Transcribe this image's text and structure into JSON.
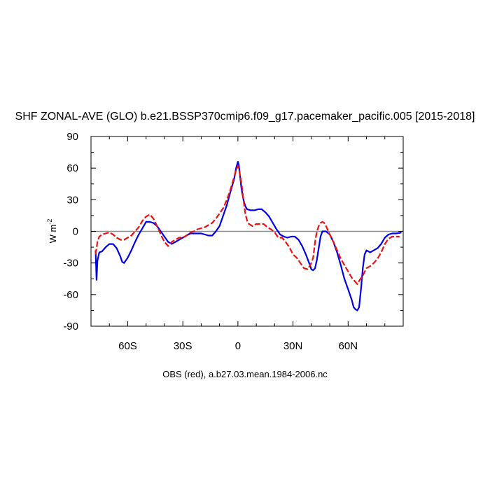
{
  "chart_data": {
    "type": "line",
    "title": "SHF ZONAL-AVE (GLO) b.e21.BSSP370cmip6.f09_g17.pacemaker_pacific.005 [2015-2018]",
    "xlabel": "",
    "ylabel": "W m",
    "ylabel_sup": "-2",
    "caption": "OBS (red), a.b27.03.mean.1984-2006.nc",
    "xlim": [
      -80,
      90
    ],
    "ylim": [
      -90,
      90
    ],
    "x_ticks": [
      {
        "value": -60,
        "label": "60S"
      },
      {
        "value": -30,
        "label": "30S"
      },
      {
        "value": 0,
        "label": "0"
      },
      {
        "value": 30,
        "label": "30N"
      },
      {
        "value": 60,
        "label": "60N"
      }
    ],
    "y_ticks": [
      {
        "value": -90,
        "label": "-90"
      },
      {
        "value": -60,
        "label": "-60"
      },
      {
        "value": -30,
        "label": "-30"
      },
      {
        "value": 0,
        "label": "0"
      },
      {
        "value": 30,
        "label": "30"
      },
      {
        "value": 60,
        "label": "60"
      },
      {
        "value": 90,
        "label": "90"
      }
    ],
    "zero_line": true,
    "series": [
      {
        "color": "#0000ee",
        "dash": "solid",
        "points": [
          [
            -77.5,
            -18
          ],
          [
            -77,
            -46
          ],
          [
            -76.5,
            -28
          ],
          [
            -75.5,
            -20
          ],
          [
            -74,
            -19
          ],
          [
            -72,
            -15
          ],
          [
            -70,
            -12
          ],
          [
            -68,
            -12
          ],
          [
            -66,
            -16
          ],
          [
            -64,
            -24
          ],
          [
            -63,
            -29
          ],
          [
            -62,
            -30
          ],
          [
            -60,
            -25
          ],
          [
            -58,
            -18
          ],
          [
            -56,
            -10
          ],
          [
            -54,
            -3
          ],
          [
            -52,
            3
          ],
          [
            -50,
            9
          ],
          [
            -48,
            9
          ],
          [
            -46,
            8
          ],
          [
            -44,
            5
          ],
          [
            -42,
            0
          ],
          [
            -40,
            -5
          ],
          [
            -38,
            -10
          ],
          [
            -36,
            -12
          ],
          [
            -34,
            -10
          ],
          [
            -32,
            -8
          ],
          [
            -30,
            -6
          ],
          [
            -28,
            -4
          ],
          [
            -26,
            -2
          ],
          [
            -24,
            -2
          ],
          [
            -22,
            -2
          ],
          [
            -20,
            -2
          ],
          [
            -18,
            -3
          ],
          [
            -16,
            -4
          ],
          [
            -14,
            -4
          ],
          [
            -12,
            0
          ],
          [
            -10,
            5
          ],
          [
            -8,
            15
          ],
          [
            -6,
            25
          ],
          [
            -4,
            38
          ],
          [
            -2,
            50
          ],
          [
            -1,
            60
          ],
          [
            0,
            66
          ],
          [
            0.5,
            63
          ],
          [
            1,
            55
          ],
          [
            2,
            40
          ],
          [
            3,
            30
          ],
          [
            4,
            24
          ],
          [
            5,
            21
          ],
          [
            7,
            20
          ],
          [
            9,
            20
          ],
          [
            11,
            21
          ],
          [
            13,
            21
          ],
          [
            15,
            18
          ],
          [
            17,
            14
          ],
          [
            19,
            8
          ],
          [
            21,
            2
          ],
          [
            23,
            -3
          ],
          [
            25,
            -5
          ],
          [
            27,
            -6
          ],
          [
            29,
            -5
          ],
          [
            31,
            -5
          ],
          [
            33,
            -8
          ],
          [
            35,
            -14
          ],
          [
            37,
            -22
          ],
          [
            39,
            -31
          ],
          [
            40,
            -36
          ],
          [
            41,
            -37
          ],
          [
            42,
            -35
          ],
          [
            43,
            -27
          ],
          [
            44,
            -16
          ],
          [
            45,
            -5
          ],
          [
            46,
            0
          ],
          [
            48,
            0
          ],
          [
            50,
            -3
          ],
          [
            52,
            -10
          ],
          [
            54,
            -20
          ],
          [
            56,
            -32
          ],
          [
            58,
            -45
          ],
          [
            60,
            -55
          ],
          [
            62,
            -65
          ],
          [
            63,
            -72
          ],
          [
            64,
            -74
          ],
          [
            65,
            -75
          ],
          [
            66,
            -72
          ],
          [
            67,
            -55
          ],
          [
            68,
            -35
          ],
          [
            69,
            -22
          ],
          [
            70,
            -18
          ],
          [
            72,
            -20
          ],
          [
            74,
            -18
          ],
          [
            76,
            -16
          ],
          [
            78,
            -12
          ],
          [
            80,
            -6
          ],
          [
            82,
            -3
          ],
          [
            84,
            -2
          ],
          [
            86,
            -2
          ],
          [
            88,
            -1.5
          ],
          [
            89,
            -1
          ]
        ]
      },
      {
        "color": "#ee1111",
        "dash": "dashed",
        "points": [
          [
            -77.5,
            -22
          ],
          [
            -77,
            -16
          ],
          [
            -76.5,
            -10
          ],
          [
            -75.5,
            -5
          ],
          [
            -74,
            -3
          ],
          [
            -72,
            -2
          ],
          [
            -70,
            -1
          ],
          [
            -68,
            -3
          ],
          [
            -66,
            -6
          ],
          [
            -64,
            -8
          ],
          [
            -62,
            -8
          ],
          [
            -60,
            -6
          ],
          [
            -58,
            -4
          ],
          [
            -56,
            0
          ],
          [
            -54,
            4
          ],
          [
            -52,
            10
          ],
          [
            -50,
            14
          ],
          [
            -48,
            16
          ],
          [
            -46,
            12
          ],
          [
            -44,
            5
          ],
          [
            -42,
            -3
          ],
          [
            -40,
            -10
          ],
          [
            -38,
            -14
          ],
          [
            -36,
            -10
          ],
          [
            -34,
            -8
          ],
          [
            -32,
            -6
          ],
          [
            -30,
            -6
          ],
          [
            -28,
            -4
          ],
          [
            -26,
            -1
          ],
          [
            -24,
            0
          ],
          [
            -22,
            2
          ],
          [
            -20,
            3
          ],
          [
            -18,
            4
          ],
          [
            -16,
            6
          ],
          [
            -14,
            8
          ],
          [
            -12,
            12
          ],
          [
            -10,
            17
          ],
          [
            -8,
            22
          ],
          [
            -6,
            30
          ],
          [
            -4,
            40
          ],
          [
            -2,
            52
          ],
          [
            -1,
            58
          ],
          [
            0,
            62
          ],
          [
            0.5,
            60
          ],
          [
            1,
            55
          ],
          [
            2,
            45
          ],
          [
            3,
            30
          ],
          [
            4,
            17
          ],
          [
            5,
            10
          ],
          [
            6,
            7
          ],
          [
            8,
            5
          ],
          [
            10,
            7
          ],
          [
            12,
            7
          ],
          [
            14,
            7
          ],
          [
            16,
            4
          ],
          [
            18,
            2
          ],
          [
            20,
            -1
          ],
          [
            22,
            -6
          ],
          [
            24,
            -6
          ],
          [
            26,
            -10
          ],
          [
            28,
            -15
          ],
          [
            30,
            -22
          ],
          [
            32,
            -25
          ],
          [
            34,
            -30
          ],
          [
            36,
            -35
          ],
          [
            38,
            -36
          ],
          [
            40,
            -30
          ],
          [
            41,
            -25
          ],
          [
            42,
            -10
          ],
          [
            43,
            0
          ],
          [
            44,
            5
          ],
          [
            45,
            8
          ],
          [
            46,
            9
          ],
          [
            47,
            8
          ],
          [
            48,
            5
          ],
          [
            50,
            -3
          ],
          [
            52,
            -10
          ],
          [
            54,
            -18
          ],
          [
            56,
            -26
          ],
          [
            58,
            -32
          ],
          [
            60,
            -38
          ],
          [
            62,
            -44
          ],
          [
            64,
            -48
          ],
          [
            65,
            -50
          ],
          [
            66,
            -47
          ],
          [
            68,
            -42
          ],
          [
            70,
            -35
          ],
          [
            72,
            -33
          ],
          [
            74,
            -30
          ],
          [
            76,
            -26
          ],
          [
            78,
            -20
          ],
          [
            80,
            -12
          ],
          [
            82,
            -7
          ],
          [
            84,
            -5
          ],
          [
            86,
            -5
          ],
          [
            88,
            -5
          ]
        ]
      }
    ]
  }
}
